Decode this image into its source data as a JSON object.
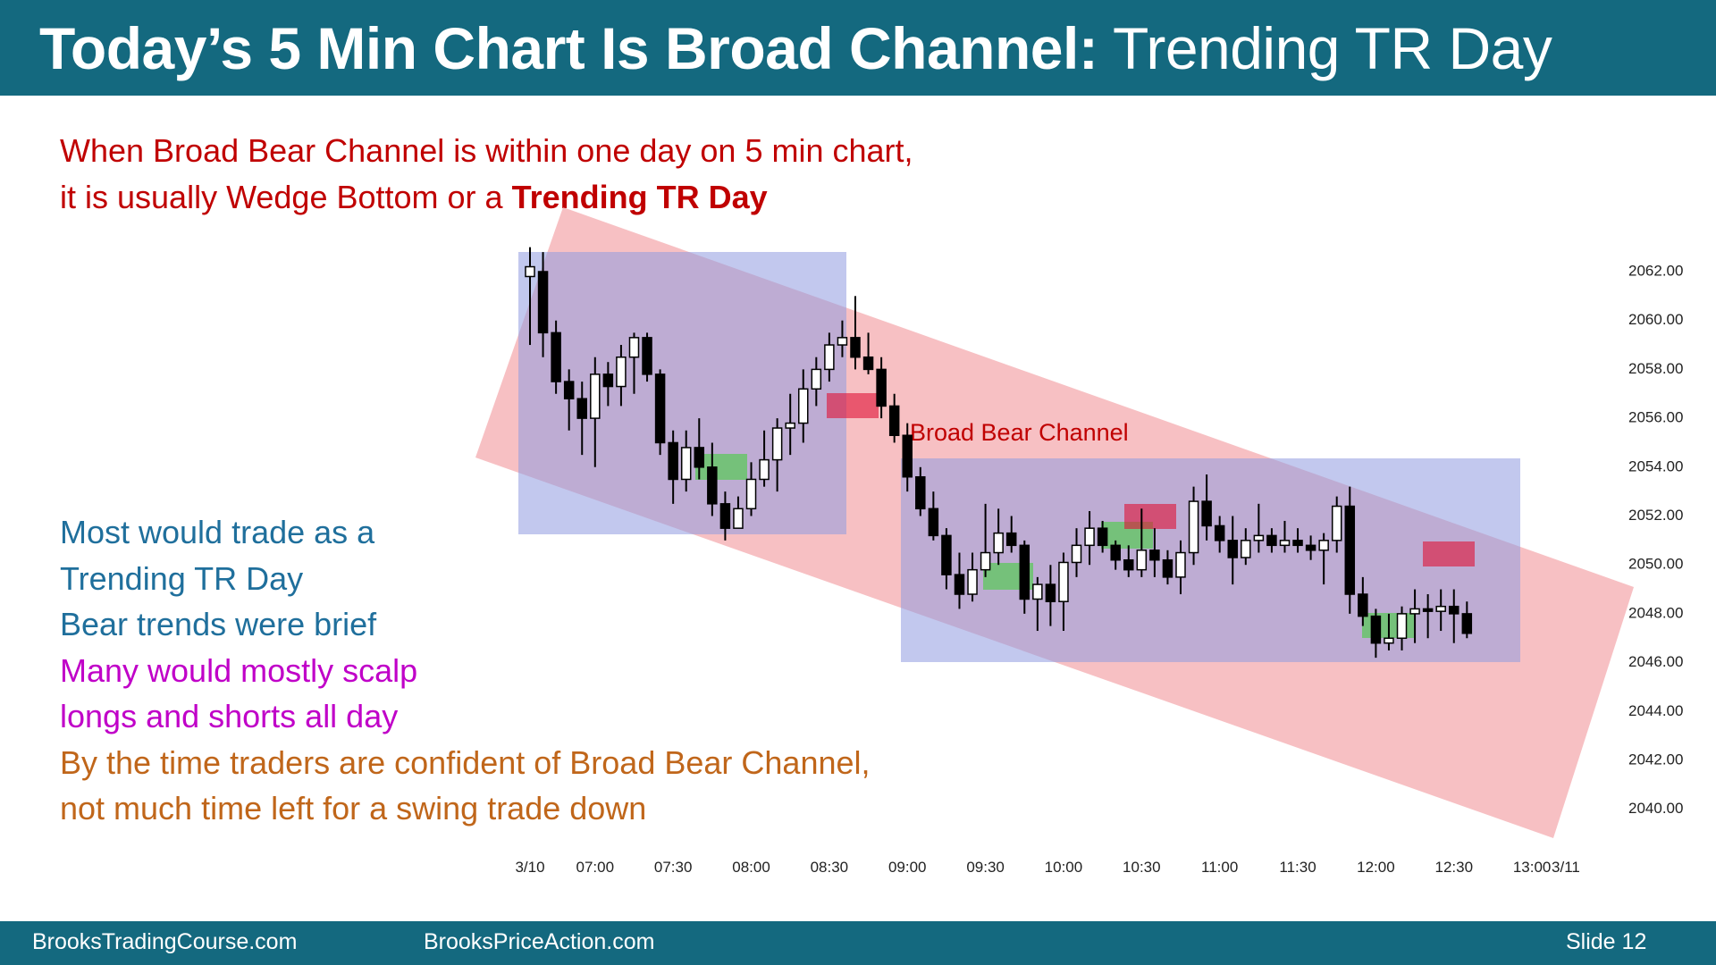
{
  "title": {
    "bold": "Today’s 5 Min Chart Is Broad Channel:",
    "regular": " Trending TR Day"
  },
  "intro": {
    "line1": "When Broad Bear Channel is within one day on 5 min chart,",
    "line2_prefix": "it is usually Wedge Bottom or a ",
    "line2_bold": "Trending TR Day"
  },
  "notes": [
    {
      "text": "Most would trade as a",
      "color": "#1f6f9c"
    },
    {
      "text": "Trending TR Day",
      "color": "#1f6f9c"
    },
    {
      "text": "Bear trends were brief",
      "color": "#1f6f9c"
    },
    {
      "text": "Many would mostly scalp",
      "color": "#c000c8"
    },
    {
      "text": "longs and shorts all day",
      "color": "#c000c8"
    },
    {
      "text": "By the time traders are confident of Broad Bear Channel,",
      "color": "#c0661a"
    },
    {
      "text": "not much time left for a swing trade down",
      "color": "#c0661a"
    }
  ],
  "footer": {
    "left": "BrooksTradingCourse.com",
    "center": "BrooksPriceAction.com",
    "right": "Slide  12"
  },
  "colors": {
    "header_bg": "#14697f",
    "channel_fill": "#f4a8ac",
    "box_fill": "#8f9be0",
    "green_box": "#5cc85c",
    "red_box": "#e01035",
    "bear_body": "#000000",
    "bull_body": "#ffffff"
  },
  "chart_data": {
    "type": "candlestick",
    "title": "",
    "ylim": [
      2039.5,
      2062.5
    ],
    "y_ticks": [
      "2062.00",
      "2060.00",
      "2058.00",
      "2056.00",
      "2054.00",
      "2052.00",
      "2050.00",
      "2048.00",
      "2046.00",
      "2044.00",
      "2042.00",
      "2040.00"
    ],
    "x_tick_labels": [
      {
        "bar": 0,
        "label": "3/10"
      },
      {
        "bar": 5,
        "label": "07:00"
      },
      {
        "bar": 11,
        "label": "07:30"
      },
      {
        "bar": 17,
        "label": "08:00"
      },
      {
        "bar": 23,
        "label": "08:30"
      },
      {
        "bar": 29,
        "label": "09:00"
      },
      {
        "bar": 35,
        "label": "09:30"
      },
      {
        "bar": 41,
        "label": "10:00"
      },
      {
        "bar": 47,
        "label": "10:30"
      },
      {
        "bar": 53,
        "label": "11:00"
      },
      {
        "bar": 59,
        "label": "11:30"
      },
      {
        "bar": 65,
        "label": "12:00"
      },
      {
        "bar": 71,
        "label": "12:30"
      },
      {
        "bar": 77,
        "label": "13:00"
      },
      {
        "bar": 79.6,
        "label": "3/11"
      }
    ],
    "channel_label": "Broad Bear Channel",
    "candles": [
      [
        2061.8,
        2063.0,
        2059.0,
        2062.2
      ],
      [
        2062.0,
        2062.8,
        2058.5,
        2059.5
      ],
      [
        2059.5,
        2060.0,
        2057.0,
        2057.5
      ],
      [
        2057.5,
        2058.0,
        2055.5,
        2056.8
      ],
      [
        2056.8,
        2057.5,
        2054.5,
        2056.0
      ],
      [
        2056.0,
        2058.5,
        2054.0,
        2057.8
      ],
      [
        2057.8,
        2058.3,
        2056.5,
        2057.3
      ],
      [
        2057.3,
        2059.0,
        2056.5,
        2058.5
      ],
      [
        2058.5,
        2059.5,
        2057.0,
        2059.3
      ],
      [
        2059.3,
        2059.5,
        2057.5,
        2057.8
      ],
      [
        2057.8,
        2058.0,
        2054.5,
        2055.0
      ],
      [
        2055.0,
        2055.5,
        2052.5,
        2053.5
      ],
      [
        2053.5,
        2055.5,
        2053.0,
        2054.8
      ],
      [
        2054.8,
        2056.0,
        2053.5,
        2054.0
      ],
      [
        2054.0,
        2055.0,
        2052.0,
        2052.5
      ],
      [
        2052.5,
        2053.0,
        2051.0,
        2051.5
      ],
      [
        2051.5,
        2052.8,
        2051.5,
        2052.3
      ],
      [
        2052.3,
        2054.2,
        2052.0,
        2053.5
      ],
      [
        2053.5,
        2055.5,
        2053.2,
        2054.3
      ],
      [
        2054.3,
        2056.0,
        2053.0,
        2055.6
      ],
      [
        2055.6,
        2057.0,
        2054.5,
        2055.8
      ],
      [
        2055.8,
        2058.0,
        2055.0,
        2057.2
      ],
      [
        2057.2,
        2058.5,
        2056.5,
        2058.0
      ],
      [
        2058.0,
        2059.5,
        2057.5,
        2059.0
      ],
      [
        2059.0,
        2060.0,
        2058.5,
        2059.3
      ],
      [
        2059.3,
        2061.0,
        2058.0,
        2058.5
      ],
      [
        2058.5,
        2059.5,
        2057.8,
        2058.0
      ],
      [
        2058.0,
        2058.5,
        2056.0,
        2056.5
      ],
      [
        2056.5,
        2057.0,
        2055.0,
        2055.3
      ],
      [
        2055.3,
        2055.8,
        2053.0,
        2053.6
      ],
      [
        2053.6,
        2054.0,
        2052.0,
        2052.3
      ],
      [
        2052.3,
        2053.0,
        2051.0,
        2051.2
      ],
      [
        2051.2,
        2051.5,
        2049.0,
        2049.6
      ],
      [
        2049.6,
        2050.5,
        2048.2,
        2048.8
      ],
      [
        2048.8,
        2050.5,
        2048.5,
        2049.8
      ],
      [
        2049.8,
        2052.5,
        2049.5,
        2050.5
      ],
      [
        2050.5,
        2052.3,
        2050.0,
        2051.3
      ],
      [
        2051.3,
        2052.0,
        2050.5,
        2050.8
      ],
      [
        2050.8,
        2051.0,
        2048.0,
        2048.6
      ],
      [
        2048.6,
        2049.5,
        2047.3,
        2049.2
      ],
      [
        2049.2,
        2050.0,
        2047.5,
        2048.5
      ],
      [
        2048.5,
        2050.5,
        2047.3,
        2050.1
      ],
      [
        2050.1,
        2051.5,
        2049.5,
        2050.8
      ],
      [
        2050.8,
        2052.2,
        2050.0,
        2051.5
      ],
      [
        2051.5,
        2051.8,
        2050.5,
        2050.8
      ],
      [
        2050.8,
        2051.0,
        2049.8,
        2050.2
      ],
      [
        2050.2,
        2050.8,
        2049.5,
        2049.8
      ],
      [
        2049.8,
        2052.3,
        2049.5,
        2050.6
      ],
      [
        2050.6,
        2051.5,
        2049.5,
        2050.2
      ],
      [
        2050.2,
        2050.6,
        2049.2,
        2049.5
      ],
      [
        2049.5,
        2051.0,
        2048.8,
        2050.5
      ],
      [
        2050.5,
        2053.2,
        2050.0,
        2052.6
      ],
      [
        2052.6,
        2053.7,
        2051.0,
        2051.6
      ],
      [
        2051.6,
        2052.0,
        2050.5,
        2051.0
      ],
      [
        2051.0,
        2052.0,
        2049.2,
        2050.3
      ],
      [
        2050.3,
        2051.5,
        2050.0,
        2051.0
      ],
      [
        2051.0,
        2052.5,
        2050.5,
        2051.2
      ],
      [
        2051.2,
        2051.5,
        2050.5,
        2050.8
      ],
      [
        2050.8,
        2051.8,
        2050.5,
        2051.0
      ],
      [
        2051.0,
        2051.5,
        2050.5,
        2050.8
      ],
      [
        2050.8,
        2051.2,
        2050.2,
        2050.6
      ],
      [
        2050.6,
        2051.3,
        2049.2,
        2051.0
      ],
      [
        2051.0,
        2052.8,
        2050.5,
        2052.4
      ],
      [
        2052.4,
        2053.2,
        2048.0,
        2048.8
      ],
      [
        2048.8,
        2049.5,
        2047.5,
        2047.9
      ],
      [
        2047.9,
        2048.2,
        2046.2,
        2046.8
      ],
      [
        2046.8,
        2048.0,
        2046.5,
        2047.0
      ],
      [
        2047.0,
        2048.3,
        2046.5,
        2048.0
      ],
      [
        2048.0,
        2049.0,
        2046.8,
        2048.2
      ],
      [
        2048.2,
        2048.8,
        2047.0,
        2048.1
      ],
      [
        2048.1,
        2049.0,
        2047.3,
        2048.3
      ],
      [
        2048.3,
        2049.0,
        2046.8,
        2048.0
      ],
      [
        2048.0,
        2048.5,
        2047.0,
        2047.2
      ]
    ]
  }
}
